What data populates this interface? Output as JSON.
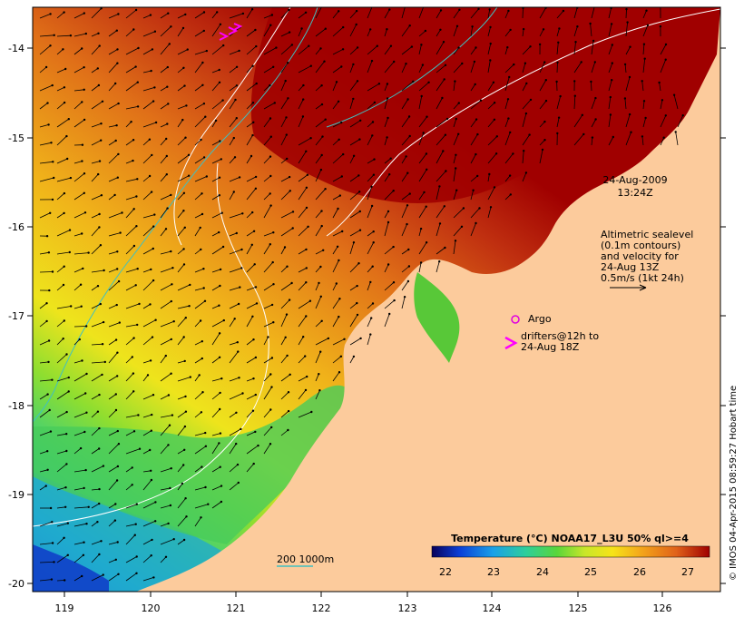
{
  "date_label": {
    "line1": "24-Aug-2009",
    "line2": "13:24Z"
  },
  "altimetry_note": [
    "Altimetric sealevel",
    "(0.1m contours)",
    "and velocity for",
    "24-Aug 13Z",
    "0.5m/s (1kt 24h)"
  ],
  "argo_label": "Argo",
  "drifters_note": [
    "drifters@12h to",
    "24-Aug 18Z"
  ],
  "bathymetry_legend": "200  1000m",
  "colorbar": {
    "title": "Temperature (°C) NOAA17_L3U 50% ql>=4",
    "ticks": [
      "22",
      "23",
      "24",
      "25",
      "26",
      "27"
    ],
    "colors": [
      "#08005a",
      "#0a3fd8",
      "#1aa0e8",
      "#2ecf9a",
      "#58d63a",
      "#c8e62a",
      "#f6e418",
      "#f3a21a",
      "#e0621a",
      "#a00000"
    ]
  },
  "x_axis": {
    "ticks": [
      "119",
      "120",
      "121",
      "122",
      "123",
      "124",
      "125",
      "126"
    ]
  },
  "y_axis": {
    "ticks": [
      "-14",
      "-15",
      "-16",
      "-17",
      "-18",
      "-19",
      "-20"
    ]
  },
  "credit": "© IMOS 04-Apr-2015 08:59:27 Hobart time",
  "colors": {
    "land": "#fccb9c",
    "ocean_warm": "#a00000",
    "contour_bathy200": "#ffffff",
    "contour_bathy1000": "#40c0c0",
    "argo": "#e000e0",
    "drifter": "#ff00ff"
  }
}
